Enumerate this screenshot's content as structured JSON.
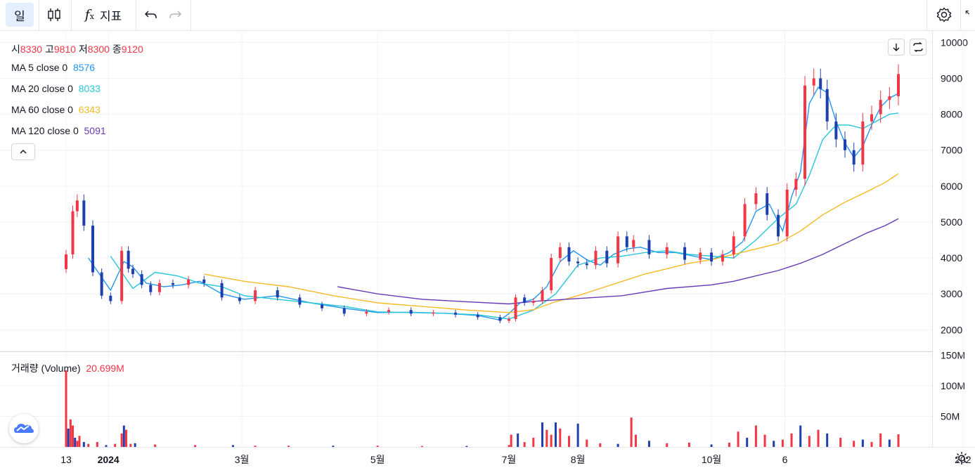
{
  "toolbar": {
    "interval_label": "일",
    "indicators_label": "지표",
    "icons": [
      "candles-icon",
      "fx-icon",
      "undo-icon",
      "redo-icon",
      "settings-icon",
      "fullscreen-icon"
    ]
  },
  "legend": {
    "ohlc": [
      {
        "label": "시",
        "value": "8330"
      },
      {
        "label": "고",
        "value": "9810"
      },
      {
        "label": "저",
        "value": "8300"
      },
      {
        "label": "종",
        "value": "9120"
      }
    ],
    "ma": [
      {
        "label": "MA 5 close 0",
        "value": "8576",
        "color": "#2196f3"
      },
      {
        "label": "MA 20 close 0",
        "value": "8033",
        "color": "#26c6da"
      },
      {
        "label": "MA 60 close 0",
        "value": "6343",
        "color": "#f7b924"
      },
      {
        "label": "MA 120 close 0",
        "value": "5091",
        "color": "#673ab7"
      }
    ],
    "volume_label": "거래량 (Volume)",
    "volume_value": "20.699M"
  },
  "colors": {
    "up": "#f23645",
    "down": "#1e40af",
    "grid": "#f0f3fa"
  },
  "chart_data": {
    "type": "candlestick",
    "price_axis": {
      "ticks": [
        "10000",
        "9000",
        "8000",
        "7000",
        "6000",
        "5000",
        "4000",
        "3000",
        "2000"
      ],
      "range": [
        1400,
        10300
      ]
    },
    "volume_axis": {
      "ticks": [
        "150M",
        "100M",
        "50M"
      ],
      "range": [
        0,
        155
      ]
    },
    "time_axis": [
      "13",
      "2024",
      "3월",
      "5월",
      "7월",
      "8월",
      "10월",
      "6",
      "202"
    ],
    "time_axis_days": [
      0,
      19,
      79,
      140,
      199,
      230,
      290,
      323,
      403
    ],
    "price_series": {
      "days": [
        0,
        3,
        5,
        8,
        12,
        16,
        20,
        25,
        28,
        30,
        34,
        38,
        42,
        48,
        55,
        62,
        70,
        78,
        85,
        95,
        105,
        115,
        125,
        135,
        145,
        155,
        165,
        175,
        185,
        195,
        199,
        202,
        206,
        210,
        214,
        218,
        222,
        226,
        230,
        234,
        238,
        243,
        248,
        252,
        255,
        262,
        270,
        278,
        285,
        290,
        295,
        300,
        305,
        310,
        315,
        320,
        324,
        328,
        332,
        336,
        339,
        342,
        346,
        350,
        354,
        358,
        362,
        366,
        370,
        374
      ],
      "close": [
        4100,
        5300,
        5600,
        4900,
        3600,
        2950,
        2800,
        4200,
        3700,
        3550,
        3250,
        3050,
        3300,
        3250,
        3400,
        3300,
        2900,
        2800,
        3100,
        2900,
        2700,
        2600,
        2450,
        2500,
        2550,
        2450,
        2480,
        2420,
        2350,
        2250,
        2300,
        2900,
        2750,
        2800,
        3100,
        4000,
        4300,
        3900,
        3850,
        3800,
        4200,
        3850,
        4600,
        4300,
        4500,
        4100,
        4300,
        3950,
        4150,
        3900,
        4100,
        4600,
        5500,
        5800,
        5200,
        4600,
        5900,
        6200,
        8800,
        9000,
        8700,
        7800,
        7300,
        7000,
        6600,
        7800,
        8000,
        8400,
        8500,
        9120
      ]
    },
    "ma_series": [
      {
        "name": "MA 5 close 0",
        "days": [
          10,
          20,
          26,
          30,
          36,
          44,
          52,
          60,
          70,
          80,
          95,
          110,
          125,
          140,
          155,
          170,
          185,
          195,
          199,
          204,
          210,
          216,
          222,
          228,
          234,
          240,
          246,
          252,
          258,
          266,
          274,
          282,
          290,
          298,
          304,
          310,
          316,
          322,
          326,
          330,
          334,
          338,
          342,
          346,
          350,
          354,
          358,
          362,
          366,
          370,
          374
        ],
        "values": [
          4000,
          3100,
          3900,
          3750,
          3300,
          3200,
          3250,
          3350,
          3000,
          2850,
          2950,
          2750,
          2600,
          2480,
          2490,
          2460,
          2400,
          2270,
          2450,
          2750,
          2850,
          3200,
          3900,
          4200,
          3950,
          3800,
          4100,
          4250,
          4300,
          4150,
          4150,
          4050,
          3950,
          4150,
          4450,
          5300,
          5500,
          4750,
          5700,
          6400,
          8300,
          8750,
          8600,
          7800,
          7200,
          6800,
          7100,
          7700,
          8200,
          8450,
          8576
        ]
      },
      {
        "name": "MA 20 close 0",
        "days": [
          20,
          30,
          40,
          50,
          60,
          70,
          80,
          95,
          110,
          125,
          140,
          155,
          170,
          185,
          199,
          210,
          220,
          230,
          240,
          250,
          260,
          270,
          280,
          290,
          300,
          310,
          320,
          328,
          334,
          340,
          346,
          352,
          358,
          364,
          370,
          374
        ],
        "values": [
          4050,
          3150,
          3600,
          3500,
          3300,
          3200,
          2950,
          2850,
          2750,
          2650,
          2500,
          2480,
          2460,
          2420,
          2300,
          2550,
          3000,
          3800,
          4000,
          4050,
          4150,
          4200,
          4100,
          4050,
          4000,
          4500,
          5100,
          5500,
          6300,
          7300,
          7700,
          7700,
          7600,
          7800,
          8000,
          8033
        ]
      },
      {
        "name": "MA 60 close 0",
        "days": [
          62,
          80,
          100,
          120,
          140,
          160,
          180,
          199,
          210,
          220,
          230,
          240,
          250,
          260,
          270,
          280,
          290,
          300,
          310,
          320,
          330,
          340,
          350,
          360,
          368,
          374
        ],
        "values": [
          3550,
          3350,
          3200,
          2950,
          2750,
          2650,
          2550,
          2480,
          2560,
          2780,
          2950,
          3150,
          3350,
          3550,
          3700,
          3850,
          3950,
          4100,
          4250,
          4400,
          4750,
          5200,
          5550,
          5850,
          6100,
          6343
        ]
      },
      {
        "name": "MA 120 close 0",
        "days": [
          122,
          140,
          160,
          180,
          199,
          210,
          230,
          250,
          270,
          290,
          300,
          310,
          320,
          330,
          340,
          350,
          360,
          368,
          374
        ],
        "values": [
          3200,
          3000,
          2850,
          2780,
          2720,
          2790,
          2870,
          2950,
          3150,
          3250,
          3350,
          3500,
          3650,
          3850,
          4100,
          4400,
          4700,
          4900,
          5091
        ]
      }
    ],
    "volume_series": {
      "days": [
        0,
        1,
        2,
        3,
        4,
        5,
        6,
        8,
        10,
        14,
        18,
        22,
        25,
        26,
        27,
        29,
        31,
        40,
        58,
        75,
        85,
        100,
        120,
        140,
        160,
        180,
        199,
        200,
        203,
        206,
        210,
        214,
        216,
        218,
        220,
        222,
        226,
        230,
        234,
        240,
        248,
        254,
        256,
        262,
        270,
        280,
        290,
        298,
        302,
        306,
        310,
        314,
        318,
        322,
        326,
        330,
        334,
        338,
        342,
        348,
        354,
        358,
        362,
        366,
        370,
        374
      ],
      "values": [
        125,
        30,
        45,
        35,
        15,
        10,
        18,
        8,
        5,
        8,
        3,
        5,
        22,
        35,
        28,
        5,
        6,
        4,
        3,
        3,
        2,
        2,
        2,
        2,
        1.5,
        1.5,
        3,
        20,
        22,
        8,
        15,
        40,
        28,
        20,
        40,
        30,
        18,
        38,
        12,
        6,
        5,
        48,
        20,
        10,
        6,
        7,
        4,
        7,
        25,
        15,
        35,
        20,
        10,
        12,
        22,
        35,
        18,
        28,
        22,
        15,
        10,
        12,
        8,
        22,
        12,
        20.7
      ]
    }
  }
}
